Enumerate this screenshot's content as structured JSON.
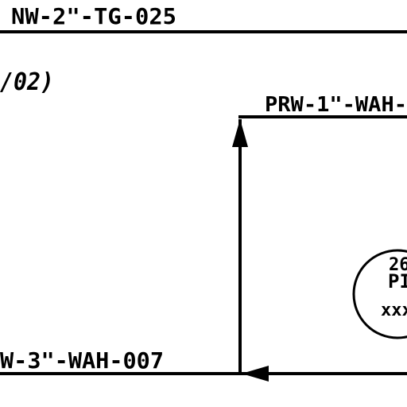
{
  "drawing": {
    "labels": {
      "top_line": "NW-2\"-TG-025",
      "revision_note": "/02)",
      "upper_right_line": "PRW-1\"-WAH-",
      "bottom_line": "W-3\"-WAH-007"
    },
    "instrument_bubble": {
      "line1": "26",
      "line2": "PI",
      "line3": "xxx"
    },
    "colors": {
      "line": "#000000",
      "background": "#ffffff"
    }
  }
}
